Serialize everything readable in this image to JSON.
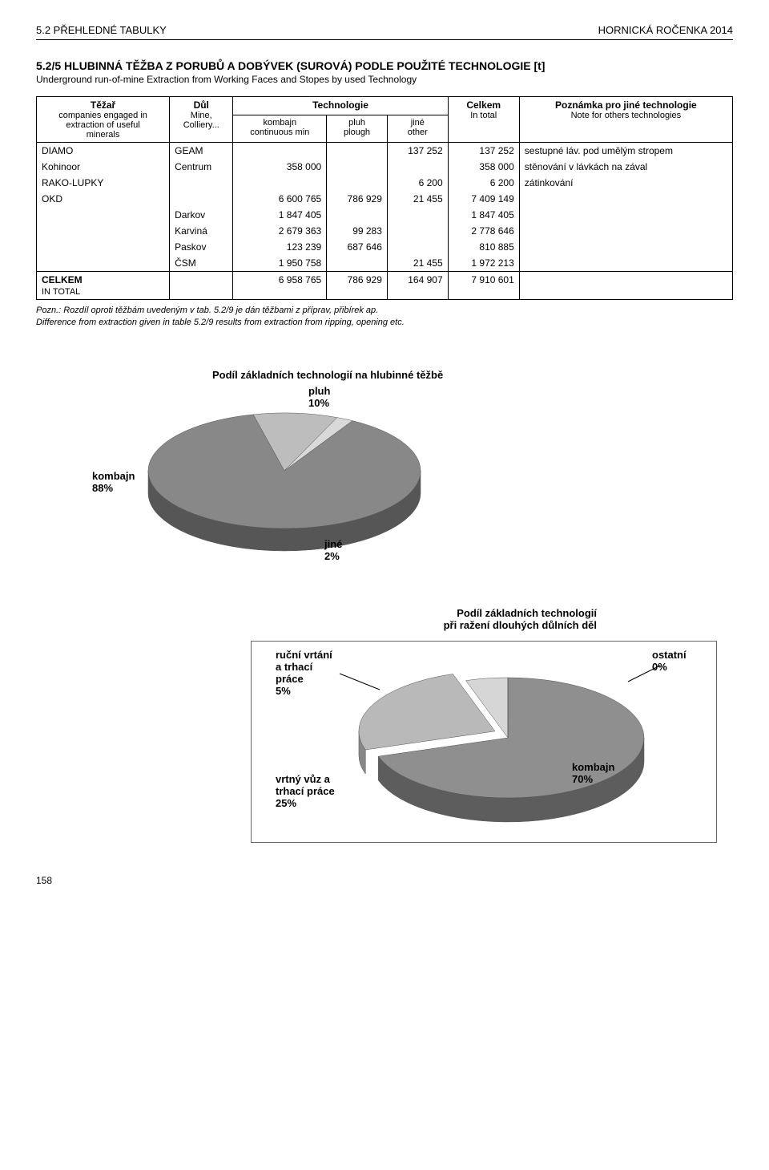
{
  "header": {
    "left": "5.2 PŘEHLEDNÉ TABULKY",
    "right": "HORNICKÁ ROČENKA 2014"
  },
  "section": {
    "title": "5.2/5 HLUBINNÁ TĚŽBA Z PORUBŮ A DOBÝVEK (SUROVÁ) PODLE POUŽITÉ TECHNOLOGIE [t]",
    "subtitle": "Underground run-of-mine Extraction from Working Faces and Stopes by used Technology"
  },
  "table": {
    "head": {
      "tezar": "Těžař",
      "tezar_sub1": "companies engaged in",
      "tezar_sub2": "extraction of useful",
      "tezar_sub3": "minerals",
      "dul": "Důl",
      "dul_sub1": "Mine,",
      "dul_sub2": "Colliery...",
      "tech": "Technologie",
      "tech_sub_kombajn": "kombajn",
      "tech_sub_kombajn2": "continuous min",
      "tech_sub_pluh": "pluh",
      "tech_sub_pluh2": "plough",
      "tech_sub_jine": "jiné",
      "tech_sub_jine2": "other",
      "celkem": "Celkem",
      "celkem_sub": "In total",
      "note": "Poznámka pro jiné technologie",
      "note_sub": "Note for others technologies"
    },
    "rows": [
      {
        "t": "DIAMO",
        "d": "GEAM",
        "k": "",
        "p": "",
        "j": "137 252",
        "c": "137 252",
        "n": "sestupné láv. pod umělým stropem"
      },
      {
        "t": "Kohinoor",
        "d": "Centrum",
        "k": "358 000",
        "p": "",
        "j": "",
        "c": "358 000",
        "n": "stěnování v lávkách na zával"
      },
      {
        "t": "RAKO-LUPKY",
        "d": "",
        "k": "",
        "p": "",
        "j": "6 200",
        "c": "6 200",
        "n": "zátinkování"
      },
      {
        "t": "OKD",
        "d": "",
        "k": "6 600 765",
        "p": "786 929",
        "j": "21 455",
        "c": "7 409 149",
        "n": ""
      },
      {
        "t": "",
        "d": "Darkov",
        "k": "1 847 405",
        "p": "",
        "j": "",
        "c": "1 847 405",
        "n": ""
      },
      {
        "t": "",
        "d": "Karviná",
        "k": "2 679 363",
        "p": "99 283",
        "j": "",
        "c": "2 778 646",
        "n": ""
      },
      {
        "t": "",
        "d": "Paskov",
        "k": "123 239",
        "p": "687 646",
        "j": "",
        "c": "810 885",
        "n": ""
      },
      {
        "t": "",
        "d": "ČSM",
        "k": "1 950 758",
        "p": "",
        "j": "21 455",
        "c": "1 972 213",
        "n": ""
      }
    ],
    "total": {
      "label": "CELKEM",
      "label_sub": "IN TOTAL",
      "k": "6 958 765",
      "p": "786 929",
      "j": "164 907",
      "c": "7 910 601"
    }
  },
  "footnote": {
    "line1": "Pozn.: Rozdíl oproti těžbám uvedeným v tab. 5.2/9 je dán těžbami z příprav, přibírek ap.",
    "line2": "Difference from extraction given in table 5.2/9 results from extraction from ripping, opening etc."
  },
  "chart1": {
    "title": "Podíl základních technologií na hlubinné těžbě",
    "slices": [
      {
        "name": "kombajn",
        "value": 88,
        "label": "kombajn\n88%",
        "color": "#888888"
      },
      {
        "name": "pluh",
        "value": 10,
        "label": "pluh\n10%",
        "color": "#bdbdbd"
      },
      {
        "name": "jine",
        "value": 2,
        "label": "jiné\n2%",
        "color": "#d9d9d9"
      }
    ],
    "labels": {
      "kombajn": "kombajn\n88%",
      "pluh": "pluh\n10%",
      "jine": "jiné\n2%"
    }
  },
  "chart2": {
    "title_l1": "Podíl základních technologií",
    "title_l2": "při ražení dlouhých důlních děl",
    "slices": [
      {
        "name": "kombajn",
        "value": 70,
        "label": "kombajn\n70%",
        "color": "#8f8f8f"
      },
      {
        "name": "vrtny",
        "value": 25,
        "label": "vrtný vůz a\ntrhací práce\n25%",
        "color": "#b9b9b9"
      },
      {
        "name": "rucni",
        "value": 5,
        "label": "ruční vrtání\na trhací\npráce\n5%",
        "color": "#d6d6d6"
      },
      {
        "name": "ostatni",
        "value": 0,
        "label": "ostatní\n0%",
        "color": "#eeeeee"
      }
    ],
    "labels": {
      "kombajn": "kombajn\n70%",
      "vrtny": "vrtný vůz a\ntrhací práce\n25%",
      "rucni": "ruční vrtání\na trhací\npráce\n5%",
      "ostatni": "ostatní\n0%"
    }
  },
  "pagenum": "158"
}
